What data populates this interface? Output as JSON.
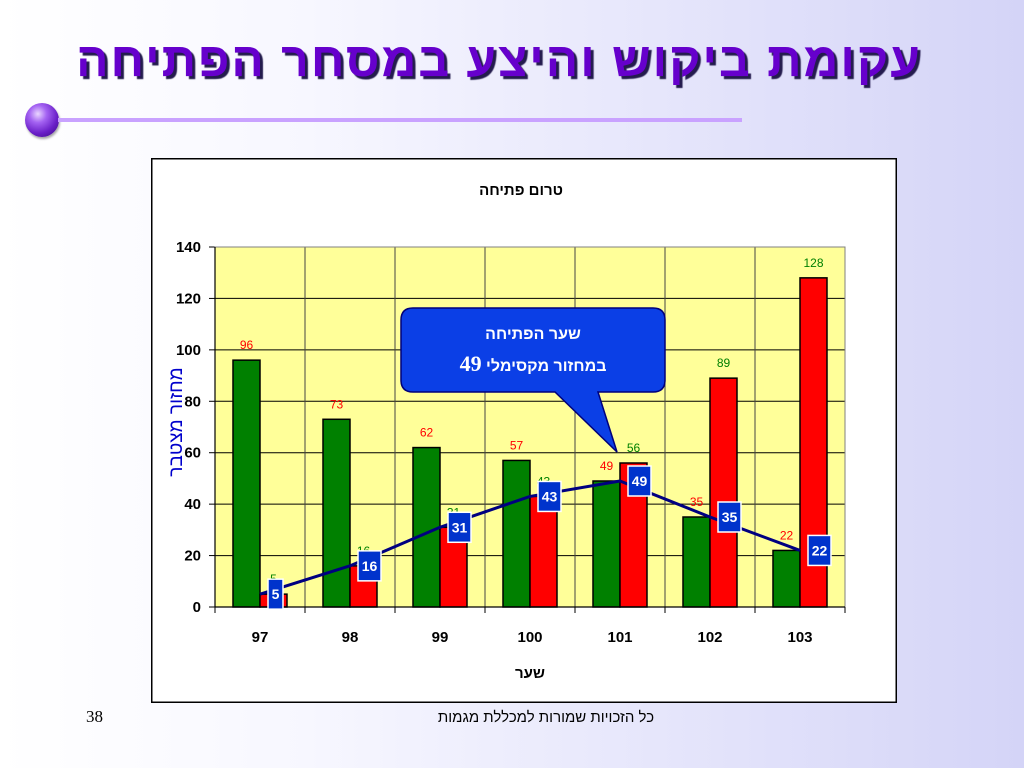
{
  "slide": {
    "title": "עקומת ביקוש והיצע במסחר הפתיחה",
    "footer": "כל הזכויות שמורות למכללת מגמות",
    "page_number": "38"
  },
  "colors": {
    "title": "#6600cc",
    "accent_line": "#c9a2ff",
    "callout_fill": "#0b3fe6",
    "callout_text": "#ffffff",
    "axis_label": "#0000cc"
  },
  "callout": {
    "line1": "שער הפתיחה",
    "line2": "במחזור מקסימלי",
    "value": "49"
  },
  "chart_data": {
    "type": "bar",
    "title": "טרום פתיחה",
    "xlabel": "שער",
    "ylabel": "מחזור מצטבר",
    "categories": [
      "97",
      "98",
      "99",
      "100",
      "101",
      "102",
      "103"
    ],
    "series": [
      {
        "type": "bar",
        "values": [
          96,
          73,
          62,
          57,
          49,
          35,
          22
        ],
        "color": "#008000",
        "label_color": "#ff0000"
      },
      {
        "type": "bar",
        "values": [
          5,
          16,
          31,
          43,
          56,
          89,
          128
        ],
        "color": "#ff0000",
        "label_color": "#008000"
      },
      {
        "type": "line",
        "values": [
          5,
          16,
          31,
          43,
          49,
          35,
          22
        ],
        "color": "#000080",
        "label_box_color": "#0033cc"
      }
    ],
    "ylim": [
      0,
      140
    ],
    "yticks": [
      0,
      20,
      40,
      60,
      80,
      100,
      120,
      140
    ],
    "grid": true,
    "plot_background": "#ffff99"
  }
}
